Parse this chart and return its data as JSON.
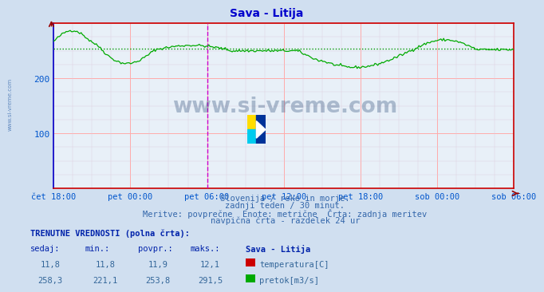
{
  "title": "Sava - Litija",
  "title_color": "#0000cc",
  "bg_color": "#d0dff0",
  "plot_bg_color": "#e8f0f8",
  "flow_color": "#00aa00",
  "flow_avg_color": "#00cc00",
  "temp_color": "#cc0000",
  "tick_label_color": "#0055cc",
  "spine_left_color": "#0000cc",
  "spine_bottom_color": "#cc0000",
  "spine_right_color": "#cc0000",
  "spine_top_color": "#cc0000",
  "grid_major_color": "#ffaaaa",
  "grid_minor_color": "#ddccdd",
  "vline_color": "#cc00cc",
  "avg_line_color": "#009900",
  "avg_line_y": 253.8,
  "ylim": [
    0,
    300
  ],
  "yticks": [
    100,
    200
  ],
  "x_tick_labels": [
    "čet 18:00",
    "pet 00:00",
    "pet 06:00",
    "pet 12:00",
    "pet 18:00",
    "sob 00:00",
    "sob 06:00"
  ],
  "vline_idx": 2,
  "subtitle_lines": [
    "Slovenija / reke in morje.",
    "zadnji teden / 30 minut.",
    "Meritve: povprečne  Enote: metrične  Črta: zadnja meritev",
    "navpična črta - razdelek 24 ur"
  ],
  "bottom_label": "TRENUTNE VREDNOSTI (polna črta):",
  "col_headers": [
    "sedaj:",
    "min.:",
    "povpr.:",
    "maks.:",
    "Sava - Litija"
  ],
  "temp_row": [
    "11,8",
    "11,8",
    "11,9",
    "12,1"
  ],
  "flow_row": [
    "258,3",
    "221,1",
    "253,8",
    "291,5"
  ],
  "legend_labels": [
    "temperatura[C]",
    "pretok[m3/s]"
  ],
  "legend_colors": [
    "#cc0000",
    "#00aa00"
  ],
  "watermark": "www.si-vreme.com",
  "watermark_color": "#1a3a6a",
  "side_text": "www.si-vreme.com",
  "side_text_color": "#3366aa"
}
